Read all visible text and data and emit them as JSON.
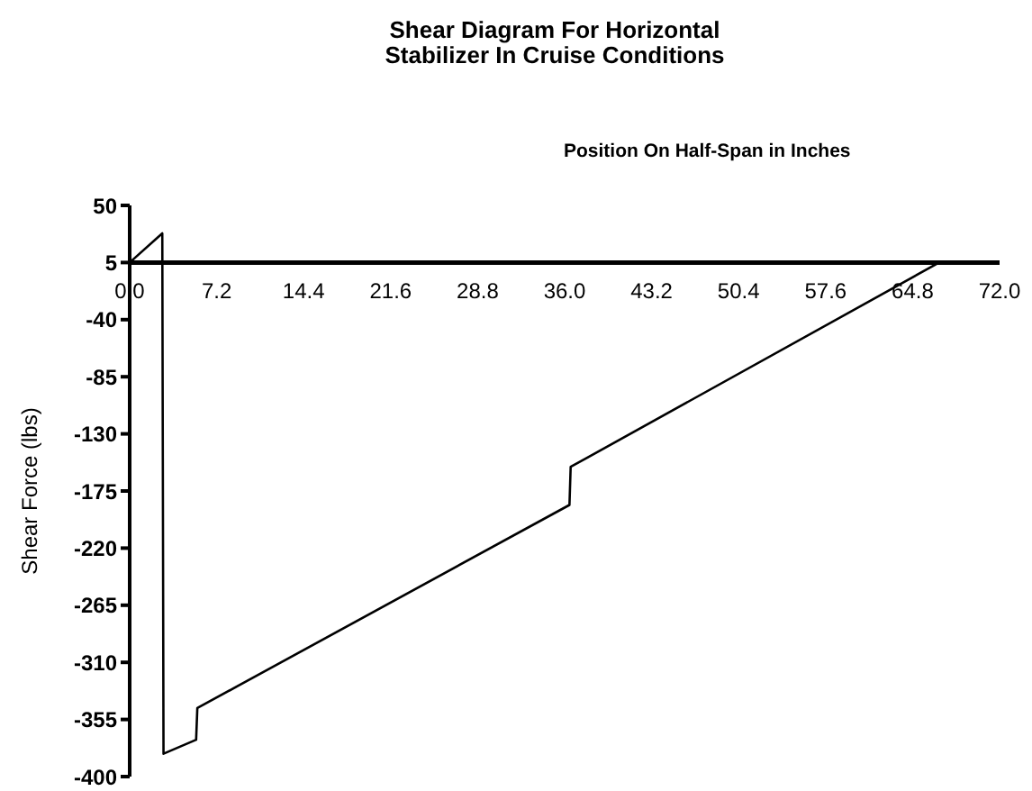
{
  "chart_data": {
    "type": "line",
    "title": "Shear Diagram For Horizontal\nStabilizer In Cruise Conditions",
    "xlabel": "Position On Half-Span in Inches",
    "ylabel": "Shear Force (lbs)",
    "x": [
      0,
      2.7,
      2.8,
      5.5,
      5.6,
      36.4,
      36.5,
      67
    ],
    "series": [
      {
        "color": "#000000",
        "values": [
          5,
          28,
          -382,
          -371,
          -346,
          -186,
          -156,
          5
        ]
      }
    ],
    "xlim": [
      0,
      72
    ],
    "xticks": [
      {
        "value": 0,
        "label": "0.0"
      },
      7.2,
      14.4,
      21.6,
      28.8,
      {
        "value": 36,
        "label": "36.0"
      },
      43.2,
      50.4,
      57.6,
      64.8,
      {
        "value": 72,
        "label": "72.0"
      }
    ],
    "ylim": [
      -400,
      50
    ],
    "yticks": [
      50,
      5,
      -40,
      -85,
      -130,
      -175,
      -220,
      -265,
      -310,
      -355,
      -400
    ],
    "grid": false,
    "legend": false,
    "marker": "none",
    "line_style": "solid"
  }
}
